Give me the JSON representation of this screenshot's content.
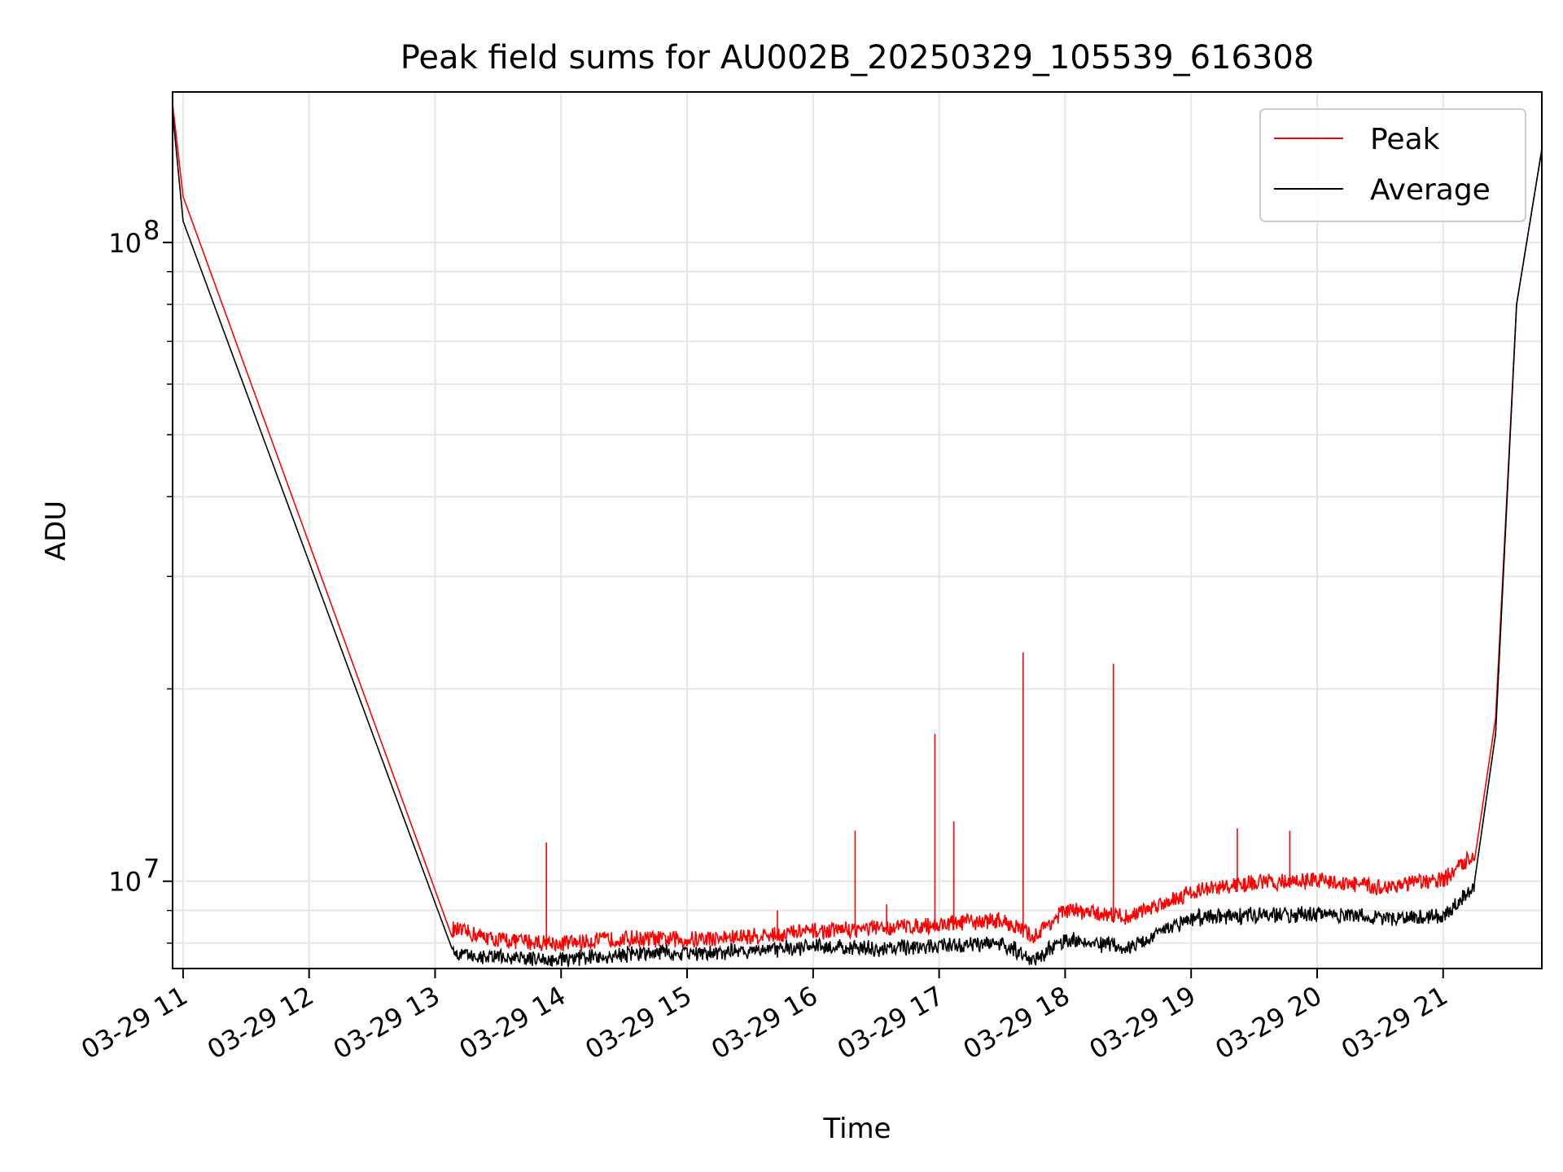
{
  "chart_data": {
    "type": "line",
    "title": "Peak field sums for AU002B_20250329_105539_616308",
    "xlabel": "Time",
    "ylabel": "ADU",
    "yscale": "log",
    "xlim": [
      "2025-03-29 10:55",
      "2025-03-29 21:47"
    ],
    "ylim": [
      7300000,
      172000000
    ],
    "grid": true,
    "legend_position": "upper right",
    "x_ticks": [
      "03-29 11",
      "03-29 12",
      "03-29 13",
      "03-29 14",
      "03-29 15",
      "03-29 16",
      "03-29 17",
      "03-29 18",
      "03-29 19",
      "03-29 20",
      "03-29 21"
    ],
    "y_major_ticks": [
      {
        "value": 10000000,
        "base": "10",
        "exp": "7"
      },
      {
        "value": 100000000,
        "base": "10",
        "exp": "8"
      }
    ],
    "series": [
      {
        "name": "Peak",
        "color": "#ff0000",
        "x": [
          "2025-03-29 10:55",
          "2025-03-29 11:00",
          "2025-03-29 13:08",
          "2025-03-29 13:30",
          "2025-03-29 14:00",
          "2025-03-29 14:30",
          "2025-03-29 15:00",
          "2025-03-29 15:30",
          "2025-03-29 16:00",
          "2025-03-29 16:30",
          "2025-03-29 17:00",
          "2025-03-29 17:30",
          "2025-03-29 17:45",
          "2025-03-29 18:00",
          "2025-03-29 18:30",
          "2025-03-29 19:00",
          "2025-03-29 19:30",
          "2025-03-29 20:00",
          "2025-03-29 20:30",
          "2025-03-29 21:00",
          "2025-03-29 21:15",
          "2025-03-29 21:25",
          "2025-03-29 21:35",
          "2025-03-29 21:47"
        ],
        "y": [
          165000000,
          118000000,
          8200000,
          7900000,
          7800000,
          7950000,
          7900000,
          8000000,
          8150000,
          8250000,
          8350000,
          8500000,
          8000000,
          8800000,
          8600000,
          9400000,
          9700000,
          9800000,
          9550000,
          9800000,
          10800000,
          18000000,
          80000000,
          140000000
        ]
      },
      {
        "name": "Average",
        "color": "#000000",
        "x": [
          "2025-03-29 10:55",
          "2025-03-29 11:00",
          "2025-03-29 13:08",
          "2025-03-29 13:30",
          "2025-03-29 14:00",
          "2025-03-29 14:30",
          "2025-03-29 15:00",
          "2025-03-29 15:30",
          "2025-03-29 16:00",
          "2025-03-29 16:30",
          "2025-03-29 17:00",
          "2025-03-29 17:30",
          "2025-03-29 17:45",
          "2025-03-29 18:00",
          "2025-03-29 18:30",
          "2025-03-29 19:00",
          "2025-03-29 19:30",
          "2025-03-29 20:00",
          "2025-03-29 20:30",
          "2025-03-29 21:00",
          "2025-03-29 21:15",
          "2025-03-29 21:25",
          "2025-03-29 21:35",
          "2025-03-29 21:47"
        ],
        "y": [
          160000000,
          108000000,
          7850000,
          7750000,
          7650000,
          7800000,
          7850000,
          7900000,
          8050000,
          7950000,
          8050000,
          8150000,
          7650000,
          8250000,
          8000000,
          8900000,
          9000000,
          9050000,
          8900000,
          8950000,
          10000000,
          17000000,
          80000000,
          140000000
        ]
      }
    ],
    "spikes": [
      {
        "x": "2025-03-29 13:53",
        "y": 11500000
      },
      {
        "x": "2025-03-29 16:20",
        "y": 12000000
      },
      {
        "x": "2025-03-29 16:58",
        "y": 17000000
      },
      {
        "x": "2025-03-29 17:07",
        "y": 12400000
      },
      {
        "x": "2025-03-29 17:40",
        "y": 22800000
      },
      {
        "x": "2025-03-29 18:23",
        "y": 21900000
      },
      {
        "x": "2025-03-29 19:22",
        "y": 12100000
      },
      {
        "x": "2025-03-29 19:47",
        "y": 12000000
      },
      {
        "x": "2025-03-29 15:43",
        "y": 9000000
      },
      {
        "x": "2025-03-29 16:35",
        "y": 9200000
      }
    ]
  }
}
